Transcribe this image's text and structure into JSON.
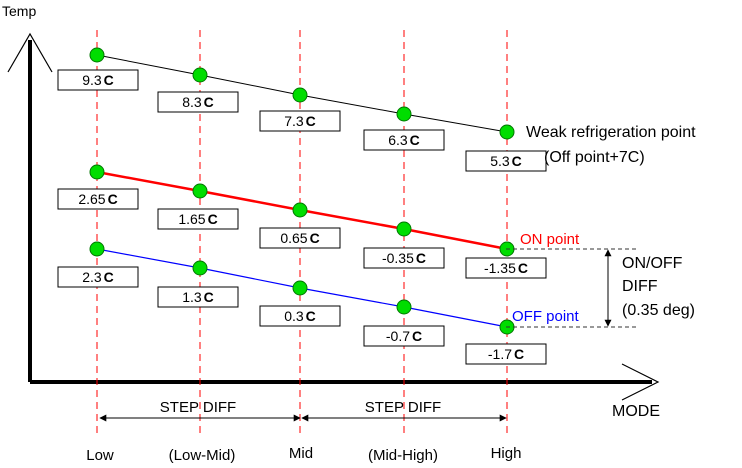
{
  "axes": {
    "y_label": "Temp",
    "x_label": "MODE"
  },
  "modes": [
    "Low",
    "(Low-Mid)",
    "Mid",
    "(Mid-High)",
    "High"
  ],
  "step_diff_label": "STEP DIFF",
  "colors": {
    "weak_line": "#000000",
    "on_line": "#ff0000",
    "off_line": "#0000ff",
    "marker_fill": "#00dd00",
    "guide": "#ff0000"
  },
  "lines": [
    {
      "id": "weak",
      "label_lines": [
        "Weak refrigeration point",
        "(Off point+7C)"
      ],
      "value_texts": [
        "9.3",
        "8.3",
        "7.3",
        "6.3",
        "5.3"
      ],
      "unit": "C"
    },
    {
      "id": "on",
      "label_lines": [
        "ON point"
      ],
      "value_texts": [
        "2.65",
        "1.65",
        "0.65",
        "-0.35",
        "-1.35"
      ],
      "unit": "C"
    },
    {
      "id": "off",
      "label_lines": [
        "OFF point"
      ],
      "value_texts": [
        "2.3",
        "1.3",
        "0.3",
        "-0.7",
        "-1.7"
      ],
      "unit": "C"
    }
  ],
  "diff_annotation": [
    "ON/OFF",
    "DIFF",
    "(0.35 deg)"
  ]
}
